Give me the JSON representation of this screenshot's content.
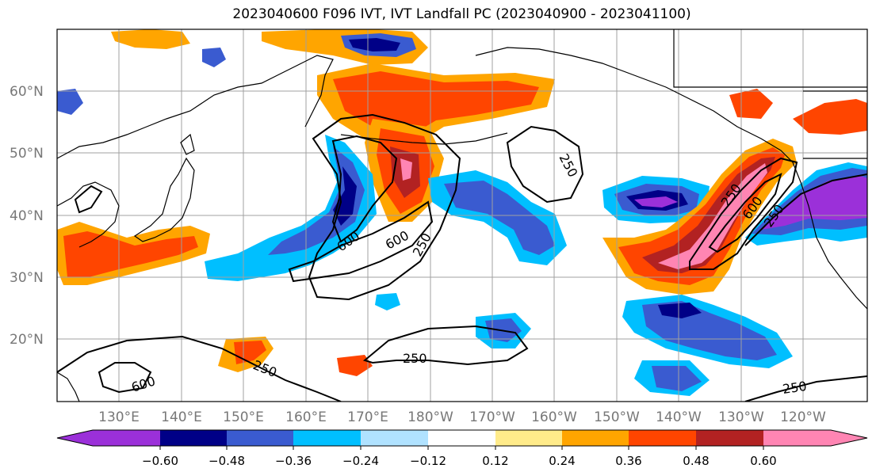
{
  "title": "2023040600 F096 IVT, IVT Landfall PC (2023040900 - 2023041100)",
  "latitude_labels": [
    "60°N",
    "50°N",
    "40°N",
    "30°N",
    "20°N"
  ],
  "longitude_labels": [
    "130°E",
    "140°E",
    "150°E",
    "160°E",
    "170°E",
    "180°W",
    "170°W",
    "160°W",
    "150°W",
    "140°W",
    "130°W",
    "120°W"
  ],
  "colorbar": {
    "colors": [
      "#9b30d9",
      "#000087",
      "#3a5bd0",
      "#00bfff",
      "#b0e2ff",
      "#ffffff",
      "#ffeb8a",
      "#ffa500",
      "#ff4500",
      "#b22222",
      "#ff85b3"
    ],
    "tick_labels": [
      "−0.60",
      "−0.48",
      "−0.36",
      "−0.24",
      "−0.12",
      "0.12",
      "0.24",
      "0.36",
      "0.48",
      "0.60"
    ]
  },
  "contour_labels": [
    "250",
    "250",
    "600",
    "600",
    "250",
    "250",
    "600",
    "250",
    "250",
    "600",
    "250"
  ]
}
